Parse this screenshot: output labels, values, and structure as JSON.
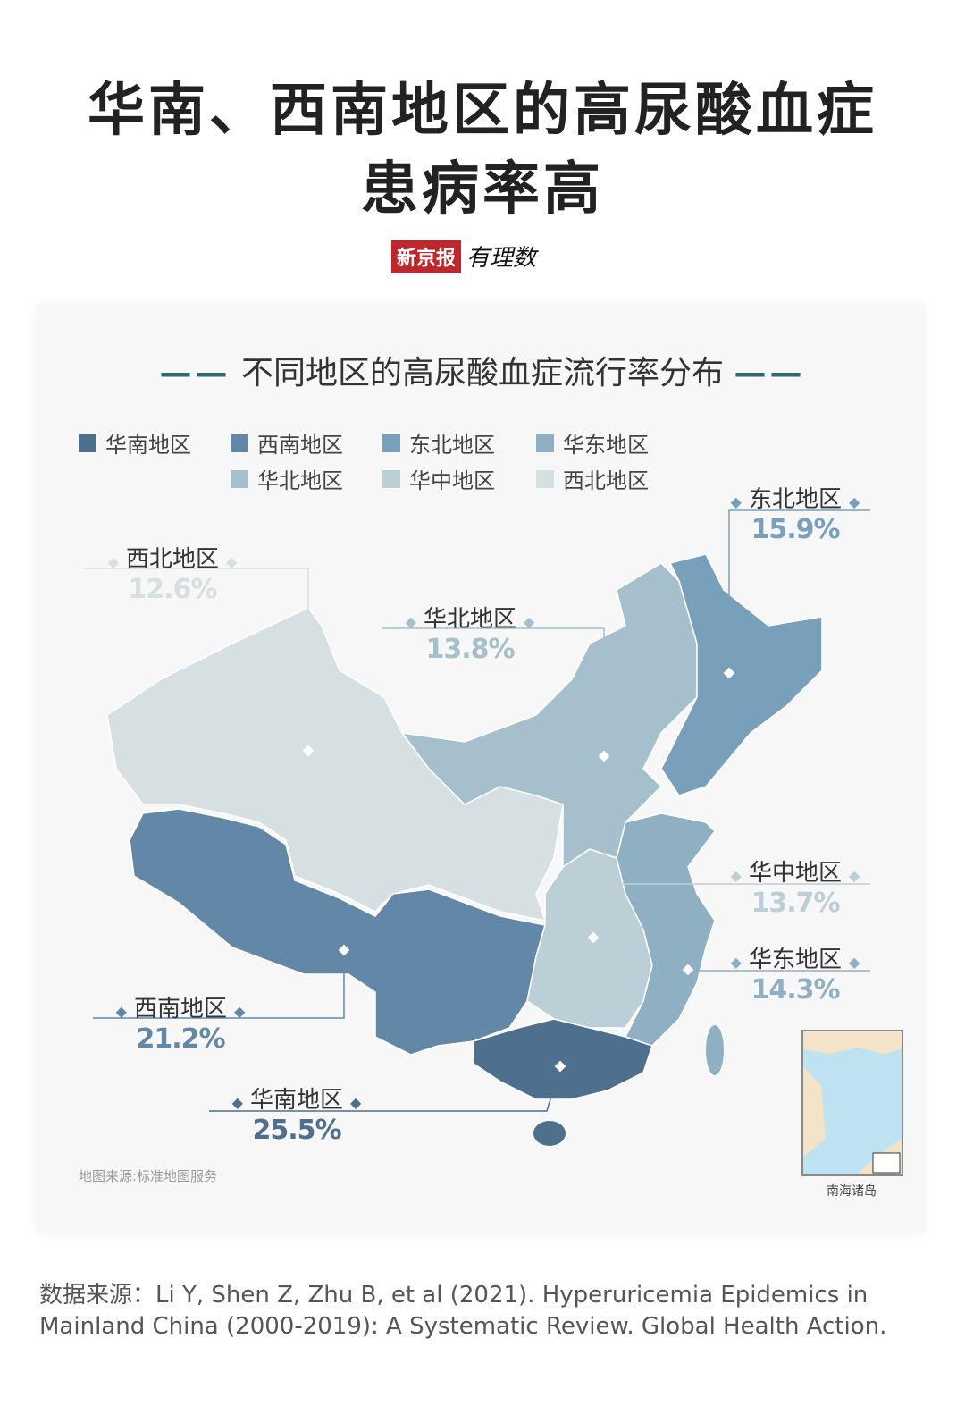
{
  "title": {
    "line1": "华南、西南地区的高尿酸血症",
    "line2": "患病率高"
  },
  "logo": {
    "brand": "新京报",
    "column": "有理数"
  },
  "subtitle": {
    "dash": "——",
    "text": "不同地区的高尿酸血症流行率分布"
  },
  "colors": {
    "华南地区": "#4f6f8f",
    "西南地区": "#6388a7",
    "东北地区": "#78a0bb",
    "华东地区": "#8fb0c2",
    "华北地区": "#a5c0cc",
    "华中地区": "#bccfd6",
    "西北地区": "#d6e0e3"
  },
  "legend": [
    "华南地区",
    "西南地区",
    "东北地区",
    "华东地区",
    "华北地区",
    "华中地区",
    "西北地区"
  ],
  "regions": [
    {
      "name": "西北地区",
      "value": "12.6%"
    },
    {
      "name": "华北地区",
      "value": "13.8%"
    },
    {
      "name": "东北地区",
      "value": "15.9%"
    },
    {
      "name": "华中地区",
      "value": "13.7%"
    },
    {
      "name": "华东地区",
      "value": "14.3%"
    },
    {
      "name": "西南地区",
      "value": "21.2%"
    },
    {
      "name": "华南地区",
      "value": "25.5%"
    }
  ],
  "map_source": "地图来源:标准地图服务",
  "inset_caption": "南海诸岛",
  "footer": "数据来源：Li Y, Shen Z, Zhu B, et al (2021). Hyperuricemia Epidemics in Mainland China (2000-2019): A Systematic Review. Global Health Action."
}
